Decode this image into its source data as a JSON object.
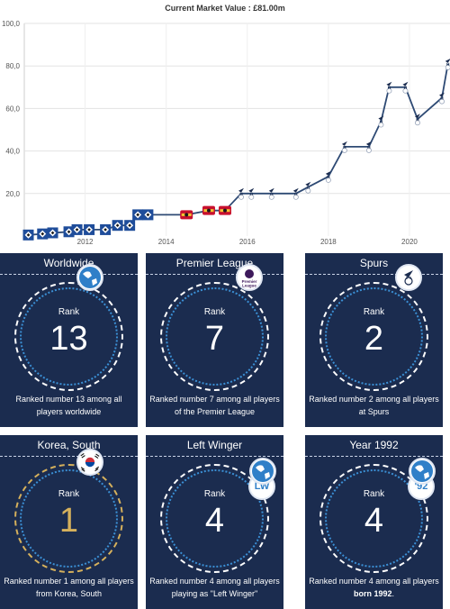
{
  "chart_data": {
    "type": "line",
    "title": "Current Market Value : £81.00m",
    "y_ticks": [
      "100,0",
      "80,0",
      "60,0",
      "40,0",
      "20,0"
    ],
    "x_ticks": [
      "2012",
      "2014",
      "2016",
      "2018",
      "2020"
    ],
    "ylim": [
      0,
      100
    ],
    "xlim": [
      2010.5,
      2021.0
    ],
    "grid": true,
    "marker_icons": [
      "hamburg-crest",
      "leverkusen-crest",
      "spurs-crest"
    ],
    "colors": {
      "line": "#2e4a74",
      "hamburg": "#1f4d9a",
      "leverkusen": "#c8102e",
      "spurs": "#1b2c4f"
    },
    "points": [
      {
        "x": 2010.6,
        "y": 0.5,
        "club": "hamburg"
      },
      {
        "x": 2010.95,
        "y": 1.0,
        "club": "hamburg"
      },
      {
        "x": 2011.2,
        "y": 1.5,
        "club": "hamburg"
      },
      {
        "x": 2011.6,
        "y": 2.0,
        "club": "hamburg"
      },
      {
        "x": 2011.8,
        "y": 3.0,
        "club": "hamburg"
      },
      {
        "x": 2012.1,
        "y": 3.0,
        "club": "hamburg"
      },
      {
        "x": 2012.5,
        "y": 3.0,
        "club": "hamburg"
      },
      {
        "x": 2012.8,
        "y": 5.0,
        "club": "hamburg"
      },
      {
        "x": 2013.1,
        "y": 5.0,
        "club": "hamburg"
      },
      {
        "x": 2013.3,
        "y": 10.0,
        "club": "hamburg"
      },
      {
        "x": 2013.55,
        "y": 10.0,
        "club": "hamburg"
      },
      {
        "x": 2014.5,
        "y": 10.0,
        "club": "leverkusen"
      },
      {
        "x": 2015.05,
        "y": 12.0,
        "club": "leverkusen"
      },
      {
        "x": 2015.45,
        "y": 12.0,
        "club": "leverkusen"
      },
      {
        "x": 2015.85,
        "y": 20.0,
        "club": "spurs"
      },
      {
        "x": 2016.1,
        "y": 20.0,
        "club": "spurs"
      },
      {
        "x": 2016.6,
        "y": 20.0,
        "club": "spurs"
      },
      {
        "x": 2017.2,
        "y": 20.0,
        "club": "spurs"
      },
      {
        "x": 2017.5,
        "y": 23.0,
        "club": "spurs"
      },
      {
        "x": 2018.0,
        "y": 28.0,
        "club": "spurs"
      },
      {
        "x": 2018.4,
        "y": 42.0,
        "club": "spurs"
      },
      {
        "x": 2019.0,
        "y": 42.0,
        "club": "spurs"
      },
      {
        "x": 2019.3,
        "y": 54.0,
        "club": "spurs"
      },
      {
        "x": 2019.5,
        "y": 70.0,
        "club": "spurs"
      },
      {
        "x": 2019.9,
        "y": 70.0,
        "club": "spurs"
      },
      {
        "x": 2020.2,
        "y": 55.0,
        "club": "spurs"
      },
      {
        "x": 2020.8,
        "y": 65.0,
        "club": "spurs"
      },
      {
        "x": 2020.95,
        "y": 81.0,
        "club": "spurs"
      }
    ]
  },
  "cards": [
    {
      "title": "Worldwide",
      "rank_label": "Rank",
      "rank": "13",
      "desc": "Ranked number 13 among all players worldwide",
      "desc_bold": "",
      "desc_tail": "",
      "badge_icon": "globe-icon",
      "badge_text": "",
      "gold": false
    },
    {
      "title": "Premier League",
      "rank_label": "Rank",
      "rank": "7",
      "desc": "Ranked number 7 among all players of the Premier League",
      "desc_bold": "",
      "desc_tail": "",
      "badge_icon": "premier-league-logo-icon",
      "badge_text": "",
      "gold": false
    },
    {
      "title": "Spurs",
      "rank_label": "Rank",
      "rank": "2",
      "desc": "Ranked number 2 among all players at Spurs",
      "desc_bold": "",
      "desc_tail": "",
      "badge_icon": "spurs-crest-icon",
      "badge_text": "",
      "gold": false
    },
    {
      "title": "Korea, South",
      "rank_label": "Rank",
      "rank": "1",
      "desc": "Ranked number 1 among all players from Korea, South",
      "desc_bold": "",
      "desc_tail": "",
      "badge_icon": "korea-flag-icon",
      "badge_text": "",
      "gold": true
    },
    {
      "title": "Left Winger",
      "rank_label": "Rank",
      "rank": "4",
      "desc": "Ranked number 4 among all players playing as \"Left Winger\"",
      "desc_bold": "",
      "desc_tail": "",
      "badge_icon": "globe-icon",
      "badge_text": "LW",
      "gold": false
    },
    {
      "title": "Year 1992",
      "rank_label": "Rank",
      "rank": "4",
      "desc": "Ranked number 4 among all players ",
      "desc_bold": "born 1992",
      "desc_tail": ".",
      "badge_icon": "globe-icon",
      "badge_text": "'92",
      "gold": false
    }
  ]
}
